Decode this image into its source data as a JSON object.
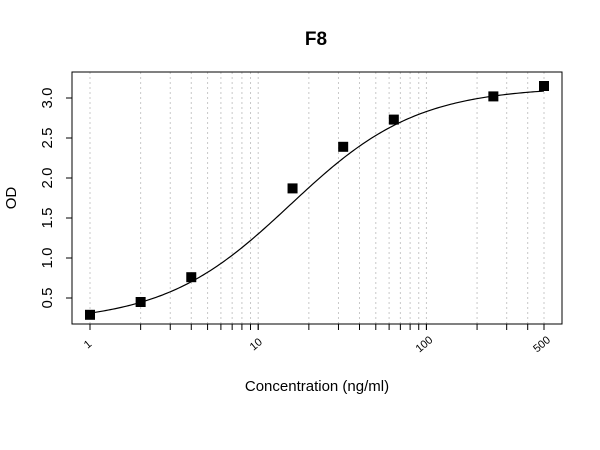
{
  "chart_data": {
    "type": "scatter",
    "title": "F8",
    "xlabel": "Concentration (ng/ml)",
    "ylabel": "OD",
    "x_scale": "log",
    "xlim": [
      1,
      500
    ],
    "ylim": [
      0.3,
      3.2
    ],
    "x_ticks": [
      1,
      10,
      100,
      500
    ],
    "x_tick_labels": [
      "1",
      "10",
      "100",
      "500"
    ],
    "y_ticks": [
      0.5,
      1.0,
      1.5,
      2.0,
      2.5,
      3.0
    ],
    "y_tick_labels": [
      "0.5",
      "1.0",
      "1.5",
      "2.0",
      "2.5",
      "3.0"
    ],
    "grid": "vertical dotted",
    "series": [
      {
        "x": [
          1,
          2,
          4,
          16,
          32,
          64,
          250,
          500
        ],
        "y": [
          0.29,
          0.45,
          0.76,
          1.87,
          2.39,
          2.73,
          3.02,
          3.15
        ],
        "marker": "square",
        "color": "#000000"
      }
    ],
    "fit_curve": {
      "model": "4PL",
      "bottom": 0.19,
      "top": 3.14,
      "ec50": 15.5,
      "hill": 1.15,
      "color": "#000000"
    }
  }
}
